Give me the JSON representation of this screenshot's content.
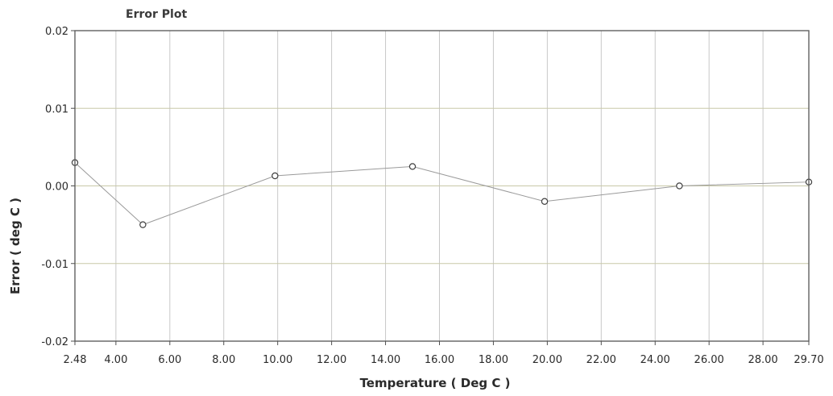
{
  "chart_data": {
    "type": "line",
    "title": "Error Plot",
    "xlabel": "Temperature ( Deg C )",
    "ylabel": "Error ( deg C )",
    "xlim": [
      2.48,
      29.7
    ],
    "ylim": [
      -0.02,
      0.02
    ],
    "x_ticks": [
      "2.48",
      "4.00",
      "6.00",
      "8.00",
      "10.00",
      "12.00",
      "14.00",
      "16.00",
      "18.00",
      "20.00",
      "22.00",
      "24.00",
      "26.00",
      "28.00",
      "29.70"
    ],
    "x_tick_values": [
      2.48,
      4,
      6,
      8,
      10,
      12,
      14,
      16,
      18,
      20,
      22,
      24,
      26,
      28,
      29.7
    ],
    "y_ticks": [
      "0.02",
      "0.01",
      "0.00",
      "-0.01",
      "-0.02"
    ],
    "y_tick_values": [
      0.02,
      0.01,
      0.0,
      -0.01,
      -0.02
    ],
    "grid": true,
    "colors": {
      "line": "#9a9a9a",
      "marker_stroke": "#404040",
      "vertical_grid": "#c8c8c8",
      "horizontal_grid": "#c9c9a8"
    },
    "series": [
      {
        "x": [
          2.48,
          5.0,
          9.9,
          15.0,
          19.9,
          24.9,
          29.7
        ],
        "y": [
          0.003,
          -0.005,
          0.0013,
          0.0025,
          -0.002,
          0.0,
          0.0005
        ]
      }
    ]
  }
}
